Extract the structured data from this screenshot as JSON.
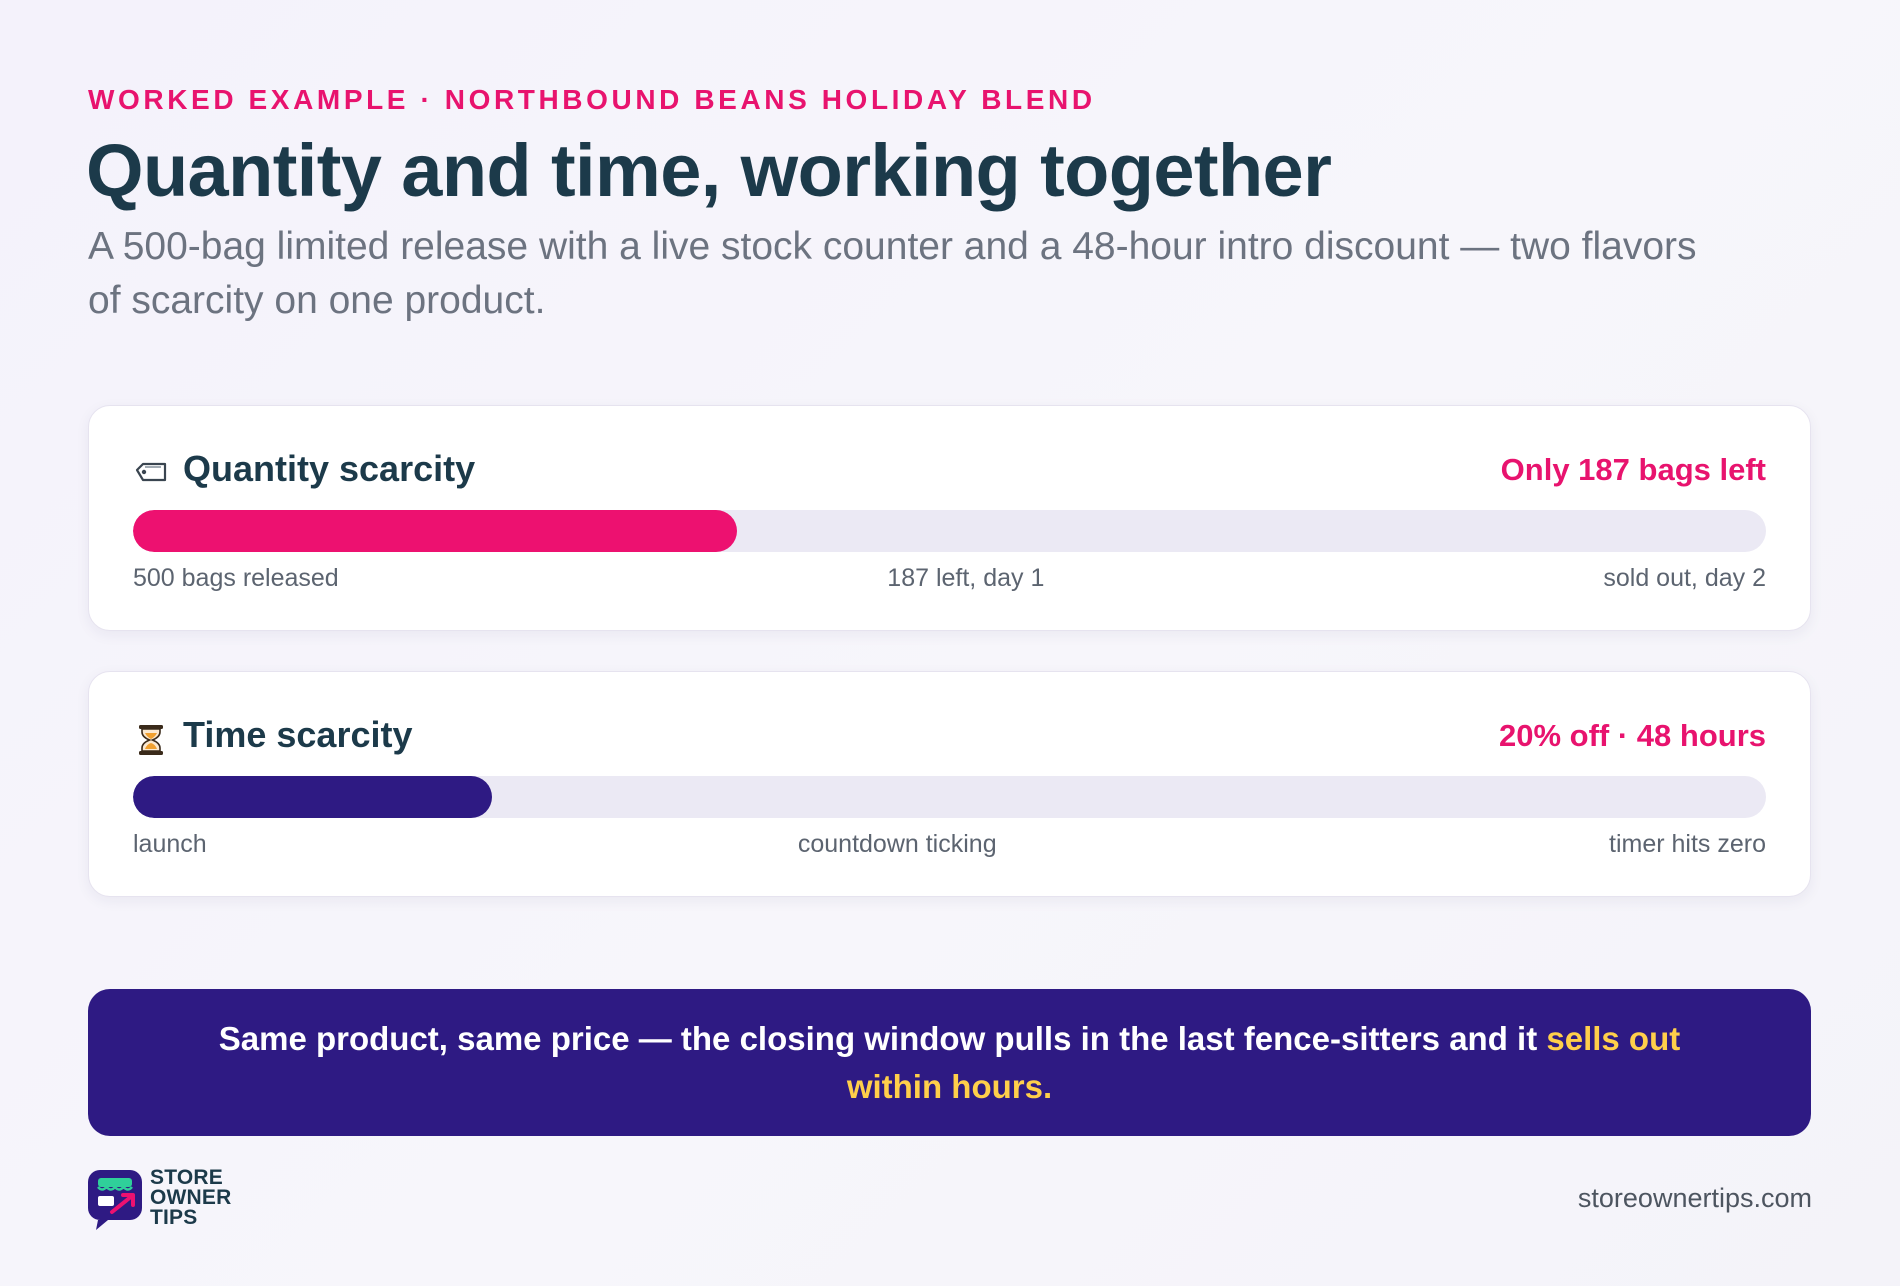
{
  "header": {
    "eyebrow": "WORKED EXAMPLE · NORTHBOUND BEANS HOLIDAY BLEND",
    "title": "Quantity and time, working together",
    "subtitle": "A 500-bag limited release with a live stock counter and a 48-hour intro discount — two flavors of scarcity on one product."
  },
  "quantity_card": {
    "icon": "tag-icon",
    "title": "Quantity scarcity",
    "status": "Only 187 bags left",
    "progress_fraction": 0.37,
    "bar_color": "#ed1170",
    "ticks": {
      "start": "500 bags released",
      "middle": "187 left, day 1",
      "end": "sold out, day 2"
    }
  },
  "time_card": {
    "icon": "hourglass-icon",
    "title": "Time scarcity",
    "status": "20% off · 48 hours",
    "progress_fraction": 0.22,
    "bar_color": "#2e1a83",
    "ticks": {
      "start": "launch",
      "middle": "countdown ticking",
      "end": "timer hits zero"
    }
  },
  "banner": {
    "text": "Same product, same price — the closing window pulls in the last fence-sitters and it ",
    "highlight": "sells out within hours."
  },
  "footer": {
    "logo_icon": "store-owner-tips-logo-icon",
    "logo_lines": [
      "STORE",
      "OWNER",
      "TIPS"
    ],
    "url": "storeownertips.com"
  },
  "colors": {
    "accent_pink": "#e8136e",
    "navy": "#2e1a83",
    "highlight_yellow": "#ffcf4a",
    "heading": "#1c3a4a"
  }
}
